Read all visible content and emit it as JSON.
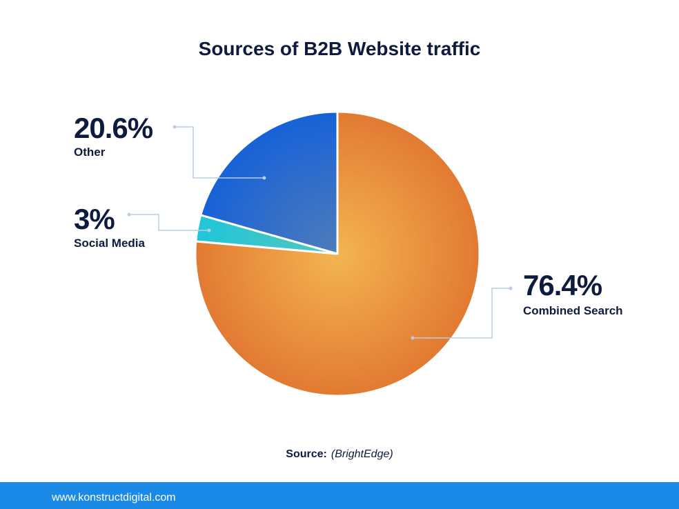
{
  "chart_data": {
    "type": "pie",
    "title": "Sources of B2B Website traffic",
    "categories": [
      "Combined Search",
      "Social Media",
      "Other"
    ],
    "values": [
      76.4,
      3,
      20.6
    ],
    "value_labels": [
      "76.4%",
      "3%",
      "20.6%"
    ],
    "colors": [
      "#e27a32",
      "#1fc6da",
      "#1762d8"
    ]
  },
  "source_label": "Source:",
  "source": "(BrightEdge)",
  "footer": "www.konstructdigital.com"
}
